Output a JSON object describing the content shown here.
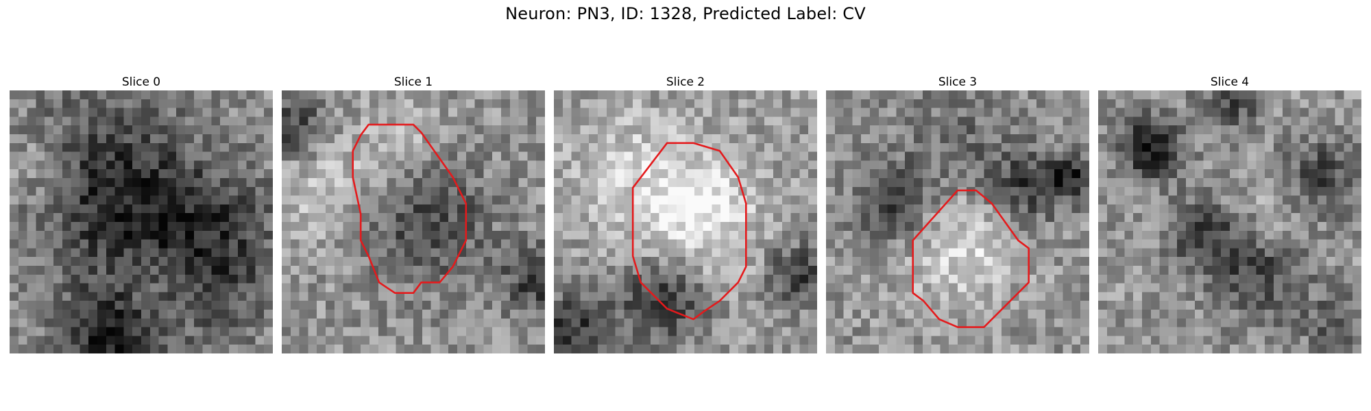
{
  "figure": {
    "title": "Neuron: PN3, ID: 1328, Predicted Label: CV",
    "contour_color": "#e41a1c",
    "colormap": "grayscale",
    "grid_size": 30,
    "slices": [
      {
        "label": "Slice 0",
        "seed": 11,
        "blobs": [
          [
            0.35,
            0.35,
            0.25,
            -0.38
          ],
          [
            0.72,
            0.62,
            0.22,
            -0.4
          ],
          [
            0.38,
            0.95,
            0.14,
            -0.45
          ],
          [
            0.1,
            0.3,
            0.12,
            0.2
          ],
          [
            0.55,
            0.75,
            0.12,
            0.18
          ]
        ],
        "contour": null
      },
      {
        "label": "Slice 1",
        "seed": 23,
        "blobs": [
          [
            0.55,
            0.5,
            0.17,
            -0.3
          ],
          [
            0.05,
            0.15,
            0.1,
            -0.35
          ],
          [
            0.15,
            0.35,
            0.15,
            0.22
          ],
          [
            0.97,
            0.72,
            0.09,
            -0.35
          ],
          [
            0.45,
            0.2,
            0.12,
            0.15
          ]
        ],
        "contour": [
          [
            0.3,
            0.17
          ],
          [
            0.33,
            0.13
          ],
          [
            0.5,
            0.13
          ],
          [
            0.53,
            0.16
          ],
          [
            0.65,
            0.33
          ],
          [
            0.7,
            0.43
          ],
          [
            0.7,
            0.57
          ],
          [
            0.65,
            0.67
          ],
          [
            0.6,
            0.73
          ],
          [
            0.53,
            0.73
          ],
          [
            0.5,
            0.77
          ],
          [
            0.43,
            0.77
          ],
          [
            0.37,
            0.73
          ],
          [
            0.33,
            0.63
          ],
          [
            0.3,
            0.57
          ],
          [
            0.3,
            0.47
          ],
          [
            0.27,
            0.33
          ],
          [
            0.27,
            0.23
          ]
        ]
      },
      {
        "label": "Slice 2",
        "seed": 37,
        "blobs": [
          [
            0.5,
            0.47,
            0.2,
            0.38
          ],
          [
            0.42,
            0.78,
            0.12,
            -0.45
          ],
          [
            0.07,
            0.9,
            0.1,
            -0.35
          ],
          [
            0.92,
            0.7,
            0.08,
            -0.38
          ],
          [
            0.2,
            0.2,
            0.15,
            0.12
          ]
        ],
        "contour": [
          [
            0.43,
            0.2
          ],
          [
            0.53,
            0.2
          ],
          [
            0.63,
            0.23
          ],
          [
            0.7,
            0.33
          ],
          [
            0.73,
            0.43
          ],
          [
            0.73,
            0.67
          ],
          [
            0.7,
            0.73
          ],
          [
            0.63,
            0.8
          ],
          [
            0.57,
            0.84
          ],
          [
            0.53,
            0.87
          ],
          [
            0.43,
            0.83
          ],
          [
            0.33,
            0.73
          ],
          [
            0.3,
            0.63
          ],
          [
            0.3,
            0.37
          ]
        ]
      },
      {
        "label": "Slice 3",
        "seed": 53,
        "blobs": [
          [
            0.52,
            0.58,
            0.16,
            0.3
          ],
          [
            0.25,
            0.45,
            0.1,
            -0.32
          ],
          [
            0.76,
            0.38,
            0.1,
            -0.32
          ],
          [
            0.93,
            0.33,
            0.06,
            -0.4
          ],
          [
            0.5,
            0.25,
            0.18,
            -0.18
          ]
        ],
        "contour": [
          [
            0.5,
            0.38
          ],
          [
            0.57,
            0.38
          ],
          [
            0.63,
            0.43
          ],
          [
            0.73,
            0.57
          ],
          [
            0.77,
            0.6
          ],
          [
            0.77,
            0.73
          ],
          [
            0.7,
            0.8
          ],
          [
            0.67,
            0.83
          ],
          [
            0.6,
            0.9
          ],
          [
            0.5,
            0.9
          ],
          [
            0.43,
            0.87
          ],
          [
            0.37,
            0.8
          ],
          [
            0.33,
            0.77
          ],
          [
            0.33,
            0.57
          ]
        ]
      },
      {
        "label": "Slice 4",
        "seed": 71,
        "blobs": [
          [
            0.2,
            0.22,
            0.08,
            -0.5
          ],
          [
            0.42,
            0.55,
            0.1,
            -0.35
          ],
          [
            0.62,
            0.7,
            0.12,
            -0.32
          ],
          [
            0.85,
            0.33,
            0.1,
            -0.3
          ],
          [
            0.5,
            0.05,
            0.08,
            -0.3
          ],
          [
            0.6,
            0.5,
            0.12,
            0.12
          ],
          [
            0.9,
            0.9,
            0.08,
            -0.25
          ]
        ],
        "contour": null
      }
    ]
  }
}
